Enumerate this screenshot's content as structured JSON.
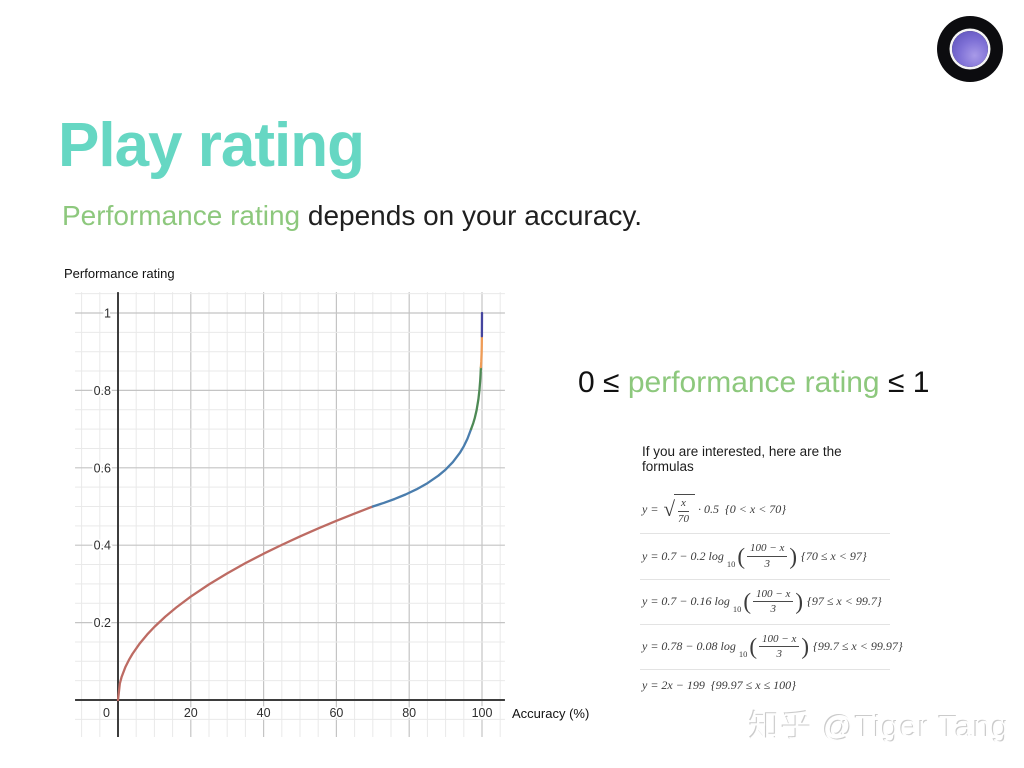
{
  "slide": {
    "title": "Play rating",
    "subtitle": {
      "highlight": "Performance rating",
      "rest": " depends on your accuracy."
    },
    "inequality": {
      "left": "0 ≤ ",
      "highlight": "performance rating",
      "right": " ≤ 1"
    },
    "watermark": "知乎 @Tiger Tang"
  },
  "colors": {
    "title_teal": "#66d7c3",
    "highlight_green": "#8dc87d",
    "text_dark": "#1f1f1f",
    "grid_minor": "#e9e9e9",
    "grid_major": "#c4c4c4",
    "axis": "#3d3d3d"
  },
  "chart_data": {
    "type": "line",
    "title": "",
    "ylabel": "Performance rating",
    "xlabel": "Accuracy (%)",
    "grid": true,
    "x_axis": {
      "min": -11.8,
      "max": 106.3,
      "minor_step": 5,
      "major_step": 20,
      "major_ticks": [
        {
          "v": 20,
          "label": "20"
        },
        {
          "v": 40,
          "label": "40"
        },
        {
          "v": 60,
          "label": "60"
        },
        {
          "v": 80,
          "label": "80"
        },
        {
          "v": 100,
          "label": "100"
        }
      ],
      "origin_label": "0"
    },
    "y_axis": {
      "min": -0.0956,
      "max": 1.054,
      "minor_step": 0.05,
      "major_step": 0.2,
      "major_ticks": [
        {
          "v": 0.2,
          "label": "0.2"
        },
        {
          "v": 0.4,
          "label": "0.4"
        },
        {
          "v": 0.6,
          "label": "0.6"
        },
        {
          "v": 0.8,
          "label": "0.8"
        },
        {
          "v": 1,
          "label": "1"
        }
      ]
    },
    "series": [
      {
        "name": "sqrt-segment",
        "color": "#bd6b63",
        "formula": "y = sqrt(x/70) * 0.5",
        "domain": "0 < x < 70",
        "points": [
          [
            0,
            0
          ],
          [
            0.5,
            0.0423
          ],
          [
            1,
            0.0598
          ],
          [
            2,
            0.0845
          ],
          [
            3,
            0.1035
          ],
          [
            4,
            0.1195
          ],
          [
            6,
            0.1464
          ],
          [
            8,
            0.169
          ],
          [
            10,
            0.189
          ],
          [
            13,
            0.2155
          ],
          [
            16,
            0.239
          ],
          [
            20,
            0.2673
          ],
          [
            25,
            0.2988
          ],
          [
            30,
            0.3273
          ],
          [
            35,
            0.3536
          ],
          [
            40,
            0.378
          ],
          [
            45,
            0.4009
          ],
          [
            50,
            0.4226
          ],
          [
            55,
            0.4432
          ],
          [
            60,
            0.4629
          ],
          [
            65,
            0.4818
          ],
          [
            70,
            0.5
          ]
        ]
      },
      {
        "name": "log-segment-1",
        "color": "#4a7dad",
        "formula": "y = 0.7 - 0.2*log10((100-x)/3)",
        "domain": "70 <= x < 97",
        "points": [
          [
            70,
            0.5
          ],
          [
            73,
            0.5092
          ],
          [
            76,
            0.5194
          ],
          [
            79,
            0.531
          ],
          [
            82,
            0.5444
          ],
          [
            85,
            0.5602
          ],
          [
            88,
            0.5796
          ],
          [
            90,
            0.5954
          ],
          [
            92,
            0.6148
          ],
          [
            94,
            0.6398
          ],
          [
            95,
            0.6556
          ],
          [
            96,
            0.675
          ],
          [
            97,
            0.7
          ]
        ]
      },
      {
        "name": "log-segment-2",
        "color": "#4e8a55",
        "formula": "y = 0.7 - 0.16*log10((100-x)/3)",
        "domain": "97 <= x < 99.7",
        "points": [
          [
            97,
            0.7
          ],
          [
            97.6,
            0.7155
          ],
          [
            98,
            0.7282
          ],
          [
            98.5,
            0.7482
          ],
          [
            99,
            0.7763
          ],
          [
            99.3,
            0.8011
          ],
          [
            99.5,
            0.8245
          ],
          [
            99.6,
            0.84
          ],
          [
            99.7,
            0.86
          ]
        ]
      },
      {
        "name": "log-segment-3",
        "color": "#ef9c57",
        "formula": "y = 0.78 - 0.08*log10((100-x)/3)",
        "domain": "99.7 <= x < 99.97",
        "points": [
          [
            99.7,
            0.86
          ],
          [
            99.8,
            0.8741
          ],
          [
            99.9,
            0.8982
          ],
          [
            99.94,
            0.9159
          ],
          [
            99.97,
            0.94
          ]
        ]
      },
      {
        "name": "linear-segment",
        "color": "#45449e",
        "formula": "y = 2x - 199",
        "domain": "99.97 <= x <= 100",
        "points": [
          [
            99.97,
            0.94
          ],
          [
            100,
            1
          ]
        ]
      }
    ]
  },
  "formulas": {
    "heading": "If you are interested, here are the formulas",
    "items": [
      {
        "tokens": [
          {
            "t": "text",
            "v": "y ="
          },
          {
            "t": "sqrt",
            "n": "x",
            "d": "70"
          },
          {
            "t": "text",
            "v": "· 0.5"
          },
          {
            "t": "cond",
            "v": "{0 < x < 70}"
          }
        ]
      },
      {
        "tokens": [
          {
            "t": "text",
            "v": "y = 0.7 − 0.2 log"
          },
          {
            "t": "sub",
            "v": "10"
          },
          {
            "t": "pfrac",
            "n": "100 − x",
            "d": "3"
          },
          {
            "t": "cond",
            "v": "{70 ≤ x < 97}"
          }
        ]
      },
      {
        "tokens": [
          {
            "t": "text",
            "v": "y = 0.7 − 0.16 log"
          },
          {
            "t": "sub",
            "v": "10"
          },
          {
            "t": "pfrac",
            "n": "100 − x",
            "d": "3"
          },
          {
            "t": "cond",
            "v": "{97 ≤ x < 99.7}"
          }
        ]
      },
      {
        "tokens": [
          {
            "t": "text",
            "v": "y = 0.78 − 0.08 log"
          },
          {
            "t": "sub",
            "v": "10"
          },
          {
            "t": "pfrac",
            "n": "100 − x",
            "d": "3"
          },
          {
            "t": "cond",
            "v": "{99.7 ≤ x < 99.97}"
          }
        ]
      },
      {
        "tokens": [
          {
            "t": "text",
            "v": "y = 2x − 199"
          },
          {
            "t": "cond",
            "v": "{99.97 ≤ x ≤ 100}"
          }
        ]
      }
    ]
  }
}
